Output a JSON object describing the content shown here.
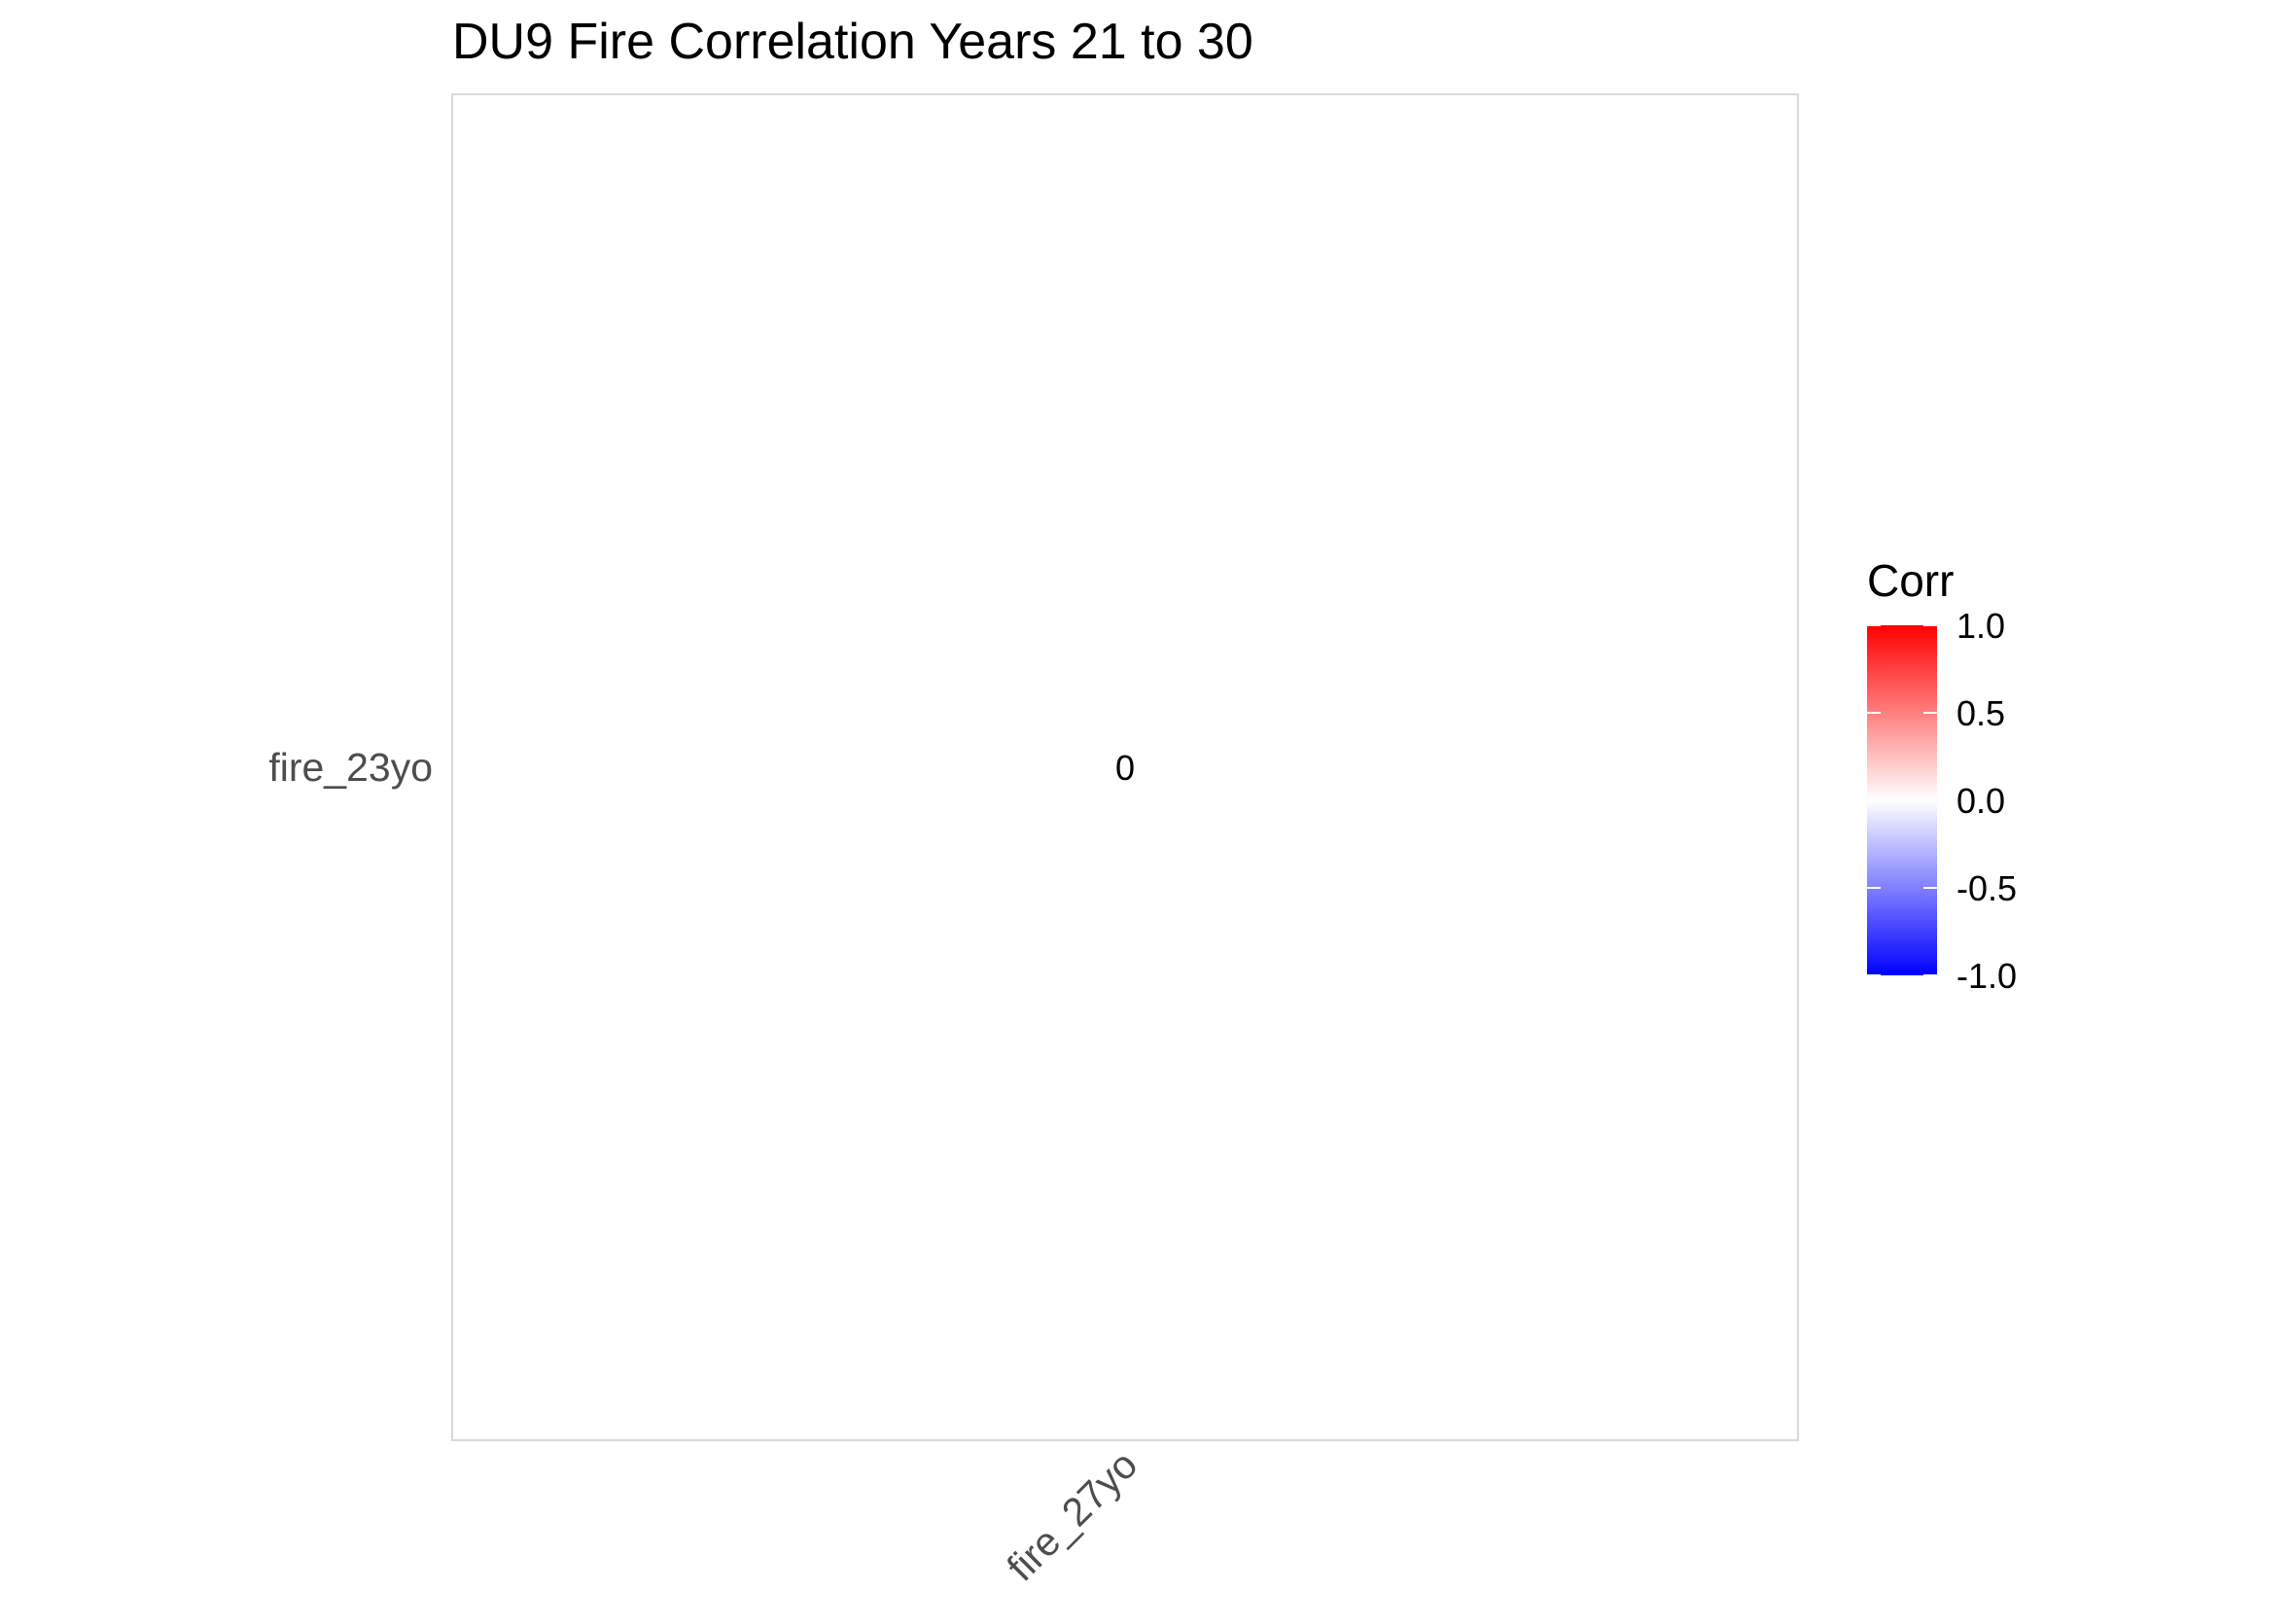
{
  "chart_data": {
    "type": "heatmap",
    "title": "DU9 Fire Correlation Years 21 to 30",
    "x_categories": [
      "fire_27yo"
    ],
    "y_categories": [
      "fire_23yo"
    ],
    "cells": [
      {
        "x": "fire_27yo",
        "y": "fire_23yo",
        "value": 0,
        "label": "0"
      }
    ],
    "legend": {
      "title": "Corr",
      "position": "right",
      "range": [
        -1.0,
        1.0
      ],
      "ticks": [
        1.0,
        0.5,
        0.0,
        -0.5,
        -1.0
      ],
      "tick_labels": [
        "1.0",
        "0.5",
        "0.0",
        "-0.5",
        "-1.0"
      ],
      "colors": {
        "low": "#0000ff",
        "mid": "#ffffff",
        "high": "#ff0000"
      }
    },
    "grid": false
  }
}
